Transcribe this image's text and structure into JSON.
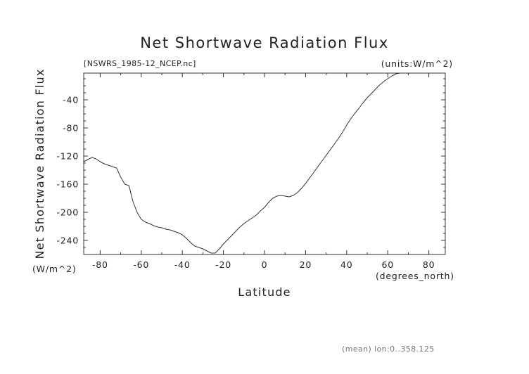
{
  "chart_data": {
    "type": "line",
    "title": "Net Shortwave Radiation Flux",
    "subtitle_left": "[NSWRS_1985-12_NCEP.nc]",
    "subtitle_right": "(units:W/m^2)",
    "xlabel": "Latitude",
    "xlabel_units": "(degrees_north)",
    "ylabel": "Net Shortwave Radiation Flux",
    "ylabel_units": "(W/m^2)",
    "footnote": "(mean) lon:0..358.125",
    "xlim": [
      -88,
      88
    ],
    "ylim": [
      -260,
      -2
    ],
    "xticks": [
      -80,
      -60,
      -40,
      -20,
      0,
      20,
      40,
      60,
      80
    ],
    "xtick_labels": [
      "-80",
      "-60",
      "-40",
      "-20",
      "0",
      "20",
      "40",
      "60",
      "80"
    ],
    "yticks": [
      -40,
      -80,
      -120,
      -160,
      -200,
      -240
    ],
    "ytick_labels": [
      "-40",
      "-80",
      "-120",
      "-160",
      "-200",
      "-240"
    ],
    "grid": false,
    "series": [
      {
        "x": [
          -88,
          -86,
          -84,
          -82,
          -80,
          -78,
          -76,
          -74,
          -72,
          -70,
          -68,
          -66,
          -64,
          -62,
          -60,
          -58,
          -56,
          -54,
          -52,
          -50,
          -48,
          -46,
          -44,
          -42,
          -40,
          -38,
          -36,
          -34,
          -32,
          -30,
          -28,
          -26,
          -24,
          -22,
          -20,
          -18,
          -16,
          -14,
          -12,
          -10,
          -8,
          -6,
          -4,
          -2,
          0,
          2,
          4,
          6,
          8,
          10,
          12,
          14,
          16,
          18,
          20,
          22,
          24,
          26,
          28,
          30,
          32,
          34,
          36,
          38,
          40,
          42,
          44,
          46,
          48,
          50,
          52,
          54,
          56,
          58,
          60,
          62,
          64,
          66,
          68,
          70,
          72,
          74,
          76,
          78,
          80,
          82,
          84,
          86,
          88
        ],
        "values": [
          -128,
          -125,
          -122,
          -124,
          -128,
          -131,
          -133,
          -135,
          -137,
          -150,
          -160,
          -162,
          -185,
          -200,
          -210,
          -214,
          -216,
          -219,
          -221,
          -222,
          -224,
          -225,
          -227,
          -229,
          -232,
          -237,
          -243,
          -248,
          -250,
          -252,
          -255,
          -258,
          -258,
          -252,
          -245,
          -239,
          -233,
          -227,
          -221,
          -216,
          -212,
          -208,
          -204,
          -198,
          -193,
          -186,
          -180,
          -177,
          -176,
          -177,
          -178,
          -176,
          -172,
          -166,
          -159,
          -151,
          -143,
          -135,
          -127,
          -119,
          -111,
          -103,
          -95,
          -86,
          -76,
          -67,
          -59,
          -52,
          -44,
          -37,
          -31,
          -25,
          -19,
          -14,
          -10,
          -6,
          -3,
          -2,
          -2,
          -2,
          -2,
          -2,
          -2,
          -2,
          -2,
          -2,
          -2,
          -2,
          -2
        ]
      }
    ]
  }
}
